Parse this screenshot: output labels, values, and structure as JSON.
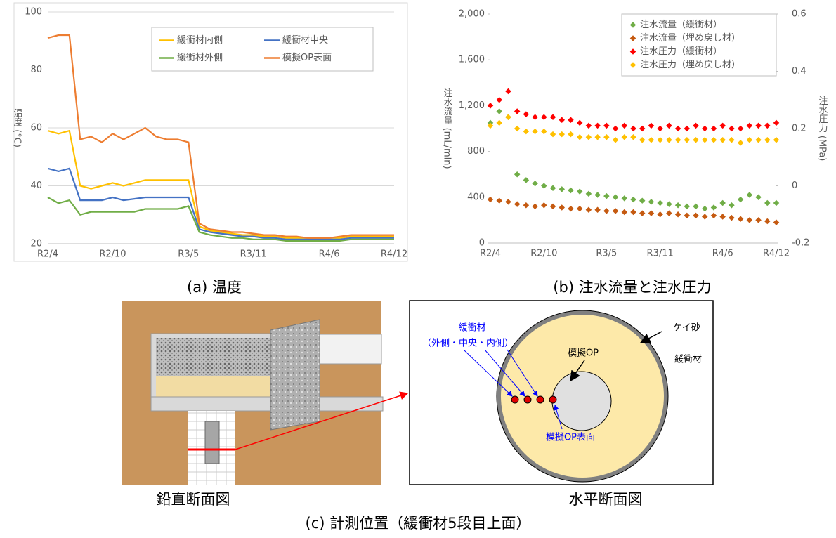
{
  "chart_data": [
    {
      "type": "line",
      "y_label": "温度 (°C)",
      "categories": [
        "R2/4",
        null,
        null,
        null,
        null,
        null,
        "R2/10",
        null,
        null,
        null,
        null,
        null,
        null,
        "R3/5",
        null,
        null,
        null,
        null,
        null,
        "R3/11",
        null,
        null,
        null,
        null,
        null,
        null,
        "R4/6",
        null,
        null,
        null,
        null,
        null,
        "R4/12"
      ],
      "series": [
        {
          "name": "緩衝材内側",
          "color": "#ffc000",
          "values": [
            59,
            58,
            59,
            40,
            39,
            40,
            41,
            40,
            41,
            42,
            42,
            42,
            42,
            42,
            26,
            24.5,
            24,
            23.5,
            23,
            23,
            22.5,
            22.5,
            22,
            22,
            22,
            22,
            22,
            22,
            22.5,
            22.5,
            22.5,
            22.5,
            22.5
          ]
        },
        {
          "name": "緩衝材中央",
          "color": "#4472c4",
          "values": [
            46,
            45,
            46,
            35,
            35,
            35,
            36,
            35,
            35.5,
            36,
            36,
            36,
            36,
            36,
            25,
            24,
            23.5,
            23,
            22.5,
            22.5,
            22,
            22,
            21.5,
            21.5,
            21.5,
            21.5,
            21.5,
            21.5,
            22,
            22,
            22,
            22,
            22
          ]
        },
        {
          "name": "緩衝材外側",
          "color": "#70ad47",
          "values": [
            36,
            34,
            35,
            30,
            31,
            31,
            31,
            31,
            31,
            32,
            32,
            32,
            32,
            33,
            24,
            23,
            22.5,
            22,
            22,
            21.5,
            21.5,
            21.5,
            21,
            21,
            21,
            21,
            21,
            21,
            21.5,
            21.5,
            21.5,
            21.5,
            21.5
          ]
        },
        {
          "name": "模擬OP表面",
          "color": "#ed7d31",
          "values": [
            91,
            92,
            92,
            56,
            57,
            55,
            58,
            56,
            58,
            60,
            57,
            56,
            56,
            55,
            27,
            25,
            24.5,
            24,
            24,
            23.5,
            23,
            23,
            22.5,
            22.5,
            22,
            22,
            22,
            22.5,
            23,
            23,
            23,
            23,
            23
          ]
        }
      ],
      "ylim": [
        20,
        100
      ],
      "yticks": [
        20,
        40,
        60,
        80,
        100
      ],
      "grid": true,
      "legend": "upper right"
    },
    {
      "type": "scatter",
      "y_label": "注水流量 (mL/min)",
      "y2_label": "注水圧力 (MPa)",
      "categories": [
        "R2/4",
        null,
        null,
        null,
        null,
        null,
        "R2/10",
        null,
        null,
        null,
        null,
        null,
        null,
        "R3/5",
        null,
        null,
        null,
        null,
        null,
        "R3/11",
        null,
        null,
        null,
        null,
        null,
        null,
        "R4/6",
        null,
        null,
        null,
        null,
        null,
        "R4/12"
      ],
      "series": [
        {
          "name": "注水流量（緩衝材）",
          "color": "#70ad47",
          "values": [
            1050,
            1150,
            1100,
            600,
            550,
            520,
            500,
            480,
            470,
            460,
            450,
            430,
            420,
            410,
            400,
            390,
            380,
            370,
            360,
            350,
            340,
            330,
            320,
            320,
            300,
            310,
            350,
            330,
            380,
            420,
            400,
            350,
            350
          ]
        },
        {
          "name": "注水流量（埋め戻し材）",
          "color": "#c55a11",
          "values": [
            380,
            370,
            360,
            340,
            330,
            320,
            330,
            320,
            310,
            300,
            300,
            290,
            290,
            280,
            280,
            270,
            270,
            260,
            260,
            250,
            260,
            250,
            240,
            240,
            230,
            240,
            230,
            220,
            210,
            200,
            200,
            190,
            180
          ]
        },
        {
          "name": "注水圧力（緩衝材）",
          "color": "#ff0000",
          "axis": "y2",
          "values": [
            0.28,
            0.3,
            0.33,
            0.26,
            0.25,
            0.24,
            0.24,
            0.24,
            0.23,
            0.23,
            0.22,
            0.21,
            0.21,
            0.21,
            0.2,
            0.21,
            0.2,
            0.2,
            0.21,
            0.2,
            0.21,
            0.2,
            0.2,
            0.21,
            0.2,
            0.2,
            0.21,
            0.2,
            0.2,
            0.21,
            0.21,
            0.21,
            0.22
          ]
        },
        {
          "name": "注水圧力（埋め戻し材）",
          "color": "#ffc000",
          "axis": "y2",
          "values": [
            0.21,
            0.22,
            0.24,
            0.2,
            0.19,
            0.19,
            0.19,
            0.18,
            0.18,
            0.18,
            0.17,
            0.17,
            0.17,
            0.17,
            0.16,
            0.17,
            0.17,
            0.16,
            0.16,
            0.16,
            0.16,
            0.16,
            0.16,
            0.16,
            0.16,
            0.16,
            0.16,
            0.16,
            0.15,
            0.16,
            0.16,
            0.16,
            0.16
          ]
        }
      ],
      "ylim": [
        0,
        2000
      ],
      "yticks": [
        0,
        400,
        800,
        {
          "value": 1200,
          "label": "1,200"
        },
        {
          "value": 1600,
          "label": "1,600"
        },
        {
          "value": 2000,
          "label": "2,000"
        }
      ],
      "y2lim": [
        -0.2,
        0.6
      ],
      "y2ticks": [
        -0.2,
        0,
        0.2,
        0.4,
        0.6
      ],
      "grid": false,
      "legend": "upper right"
    }
  ],
  "captions": [
    "(a) 温度",
    "(b) 注水流量と注水圧力",
    "(c) 計測位置（緩衝材5段目上面）"
  ],
  "diagram": {
    "vertical_title": "鉛直断面図",
    "horizontal_title": "水平断面図",
    "buffer_label": "緩衝材",
    "buffer_positions": "（外側・中央・内側）",
    "op_label": "模擬OP",
    "sand_label": "ケイ砂",
    "buffer_region_label": "緩衝材",
    "op_surface_label": "模擬OP表面"
  }
}
